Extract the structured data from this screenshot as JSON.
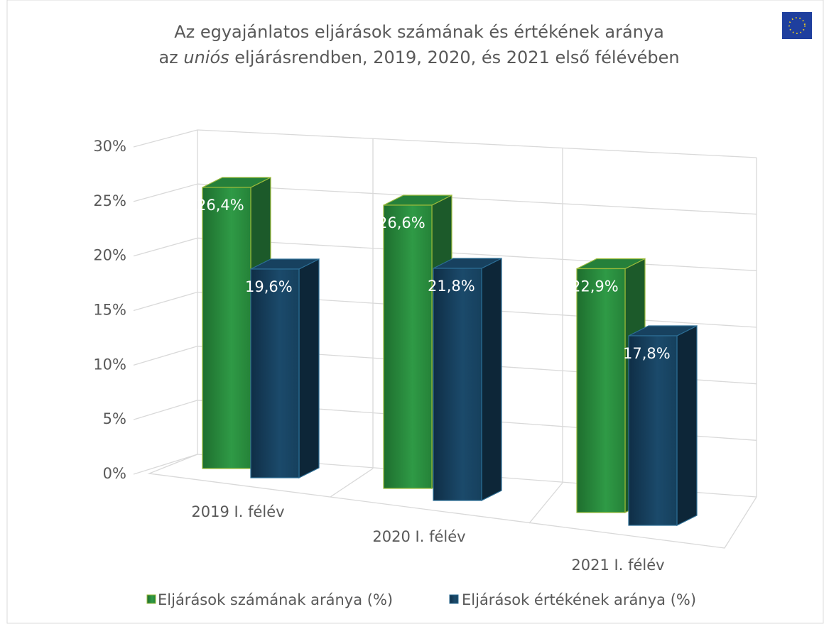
{
  "chart_data": {
    "type": "bar3d",
    "title": {
      "line1": "Az egyajánlatos eljárások számának és értékének aránya",
      "line2": [
        "az ",
        "uniós",
        " eljárásrendben, 2019, 2020, és 2021 első félévében"
      ]
    },
    "categories": [
      "2019 I. félév",
      "2020 I. félév",
      "2021 I. félév"
    ],
    "series": [
      {
        "name": "Eljárások számának aránya (%)",
        "color": "#2a8a3e",
        "values": [
          26.4,
          26.6,
          22.9
        ],
        "value_labels": [
          "26,4%",
          "26,6%",
          "22,9%"
        ]
      },
      {
        "name": "Eljárások értékének aránya (%)",
        "color": "#17405e",
        "values": [
          19.6,
          21.8,
          17.8
        ],
        "value_labels": [
          "19,6%",
          "21,8%",
          "17,8%"
        ]
      }
    ],
    "ylim": [
      0,
      30
    ],
    "yticks": [
      {
        "value": 0,
        "label": "0%"
      },
      {
        "value": 5,
        "label": "5%"
      },
      {
        "value": 10,
        "label": "10%"
      },
      {
        "value": 15,
        "label": "15%"
      },
      {
        "value": 20,
        "label": "20%"
      },
      {
        "value": 25,
        "label": "25%"
      },
      {
        "value": 30,
        "label": "30%"
      }
    ],
    "grid": true,
    "legend": "bottom"
  }
}
